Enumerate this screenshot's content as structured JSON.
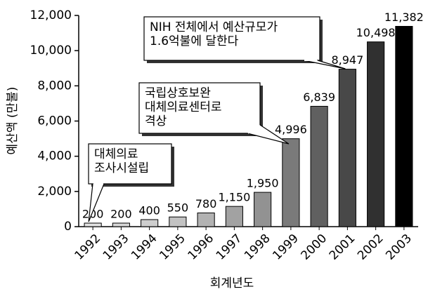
{
  "chart_data": {
    "type": "bar",
    "categories": [
      "1992",
      "1993",
      "1994",
      "1995",
      "1996",
      "1997",
      "1998",
      "1999",
      "2000",
      "2001",
      "2002",
      "2003"
    ],
    "values": [
      200,
      200,
      400,
      550,
      780,
      1150,
      1950,
      4996,
      6839,
      8947,
      10498,
      11382
    ],
    "value_labels": [
      "200",
      "200",
      "400",
      "550",
      "780",
      "1,150",
      "1,950",
      "4,996",
      "6,839",
      "8,947",
      "10,498",
      "11,382"
    ],
    "colors": [
      "#e2e2e2",
      "#d8d8d8",
      "#cecece",
      "#c2c2c2",
      "#b2b2b2",
      "#a2a2a2",
      "#929292",
      "#7a7a7a",
      "#606060",
      "#484848",
      "#303030",
      "#000000"
    ],
    "ylim": [
      0,
      12000
    ],
    "yticks": [
      0,
      {
        "value": 2000,
        "label": "2,000"
      },
      {
        "value": 4000,
        "label": "4,000"
      },
      {
        "value": 6000,
        "label": "6,000"
      },
      {
        "value": 8000,
        "label": "8,000"
      },
      {
        "value": 10000,
        "label": "10,000"
      },
      {
        "value": 12000,
        "label": "12,000"
      }
    ],
    "ylabel": "예산액 (만불)",
    "xlabel": "회계년도",
    "grid": false,
    "annotations": [
      {
        "lines": [
          "대체의료",
          "조사시설립"
        ]
      },
      {
        "lines": [
          "국립상호보완",
          "대체의료센터로",
          "격상"
        ]
      },
      {
        "lines": [
          "NIH 전체에서 예산규모가",
          "1.6억불에 달한다"
        ]
      }
    ]
  }
}
